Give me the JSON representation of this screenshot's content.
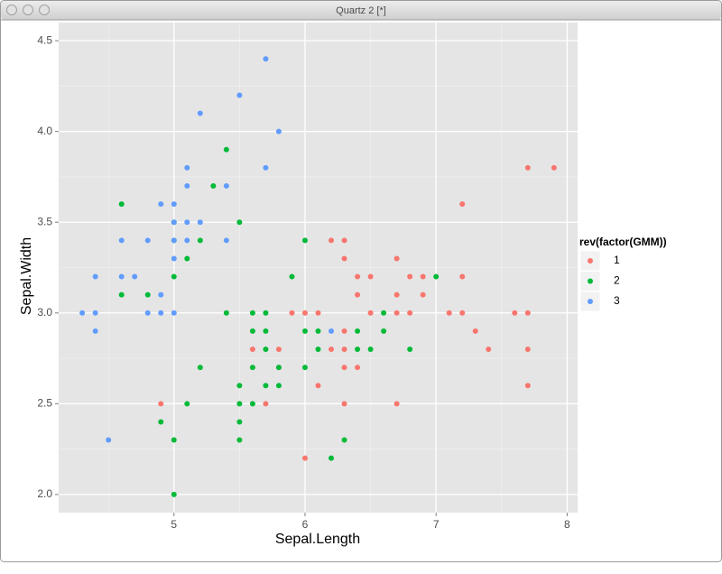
{
  "window_title": "Quartz 2 [*]",
  "chart_data": {
    "type": "scatter",
    "x_label": "Sepal.Length",
    "y_label": "Sepal.Width",
    "legend_title": "rev(factor(GMM))",
    "legend_position": "right",
    "grid": true,
    "xlim": [
      4.12,
      8.08
    ],
    "ylim": [
      1.9,
      4.6
    ],
    "xticks": [
      5,
      6,
      7,
      8
    ],
    "yticks": [
      {
        "value": 2,
        "label": "2.0"
      },
      {
        "value": 2.5,
        "label": "2.5"
      },
      {
        "value": 3,
        "label": "3.0"
      },
      {
        "value": 3.5,
        "label": "3.5"
      },
      {
        "value": 4,
        "label": "4.0"
      },
      {
        "value": 4.5,
        "label": "4.5"
      }
    ],
    "series": [
      {
        "name": "1",
        "color": "#F8766D",
        "x": [
          4.9,
          5.6,
          5.7,
          5.8,
          5.8,
          5.9,
          6.0,
          6.0,
          6.1,
          6.1,
          6.2,
          6.2,
          6.3,
          6.3,
          6.3,
          6.3,
          6.3,
          6.3,
          6.4,
          6.4,
          6.4,
          6.5,
          6.5,
          6.7,
          6.7,
          6.7,
          6.7,
          6.8,
          6.8,
          6.9,
          6.9,
          7.1,
          7.2,
          7.2,
          7.2,
          7.3,
          7.4,
          7.6,
          7.7,
          7.7,
          7.7,
          7.7,
          7.9
        ],
        "y": [
          2.5,
          2.8,
          2.5,
          2.8,
          2.7,
          3.0,
          3.0,
          2.2,
          3.0,
          2.6,
          3.4,
          2.8,
          3.4,
          3.3,
          2.9,
          2.8,
          2.7,
          2.5,
          3.2,
          3.1,
          2.7,
          3.2,
          3.0,
          3.3,
          3.1,
          3.0,
          2.5,
          3.2,
          3.0,
          3.2,
          3.1,
          3.0,
          3.6,
          3.2,
          3.0,
          2.9,
          2.8,
          3.0,
          3.8,
          3.0,
          2.8,
          2.6,
          3.8
        ]
      },
      {
        "name": "2",
        "color": "#00BA38",
        "x": [
          4.6,
          4.6,
          4.8,
          4.9,
          5.0,
          5.0,
          5.0,
          5.0,
          5.0,
          5.1,
          5.1,
          5.2,
          5.2,
          5.3,
          5.4,
          5.4,
          5.5,
          5.5,
          5.5,
          5.5,
          5.5,
          5.6,
          5.6,
          5.6,
          5.6,
          5.7,
          5.7,
          5.7,
          5.7,
          5.8,
          5.8,
          5.9,
          6.0,
          6.0,
          6.0,
          6.1,
          6.1,
          6.2,
          6.3,
          6.4,
          6.4,
          6.5,
          6.6,
          6.6,
          6.8,
          7.0
        ],
        "y": [
          3.6,
          3.1,
          3.1,
          2.4,
          3.5,
          3.4,
          3.2,
          2.3,
          2.0,
          3.3,
          2.5,
          3.4,
          2.7,
          3.7,
          3.9,
          3.0,
          3.5,
          2.6,
          2.5,
          2.4,
          2.3,
          3.0,
          2.9,
          2.7,
          2.5,
          3.0,
          2.9,
          2.8,
          2.6,
          2.7,
          2.6,
          3.2,
          3.4,
          2.9,
          2.7,
          2.9,
          2.8,
          2.2,
          2.3,
          2.9,
          2.8,
          2.8,
          3.0,
          2.9,
          2.8,
          3.2
        ]
      },
      {
        "name": "3",
        "color": "#619CFF",
        "x": [
          4.3,
          4.4,
          4.4,
          4.4,
          4.5,
          4.6,
          4.6,
          4.7,
          4.8,
          4.8,
          4.9,
          4.9,
          4.9,
          5.0,
          5.0,
          5.0,
          5.0,
          5.0,
          5.1,
          5.1,
          5.1,
          5.1,
          5.2,
          5.2,
          5.4,
          5.4,
          5.5,
          5.7,
          5.7,
          5.8,
          6.2
        ],
        "y": [
          3.0,
          3.2,
          3.0,
          2.9,
          2.3,
          3.4,
          3.2,
          3.2,
          3.4,
          3.0,
          3.6,
          3.1,
          3.0,
          3.6,
          3.5,
          3.4,
          3.3,
          3.0,
          3.8,
          3.7,
          3.5,
          3.4,
          4.1,
          3.5,
          3.7,
          3.4,
          4.2,
          4.4,
          3.8,
          4.0,
          2.9
        ]
      }
    ]
  }
}
